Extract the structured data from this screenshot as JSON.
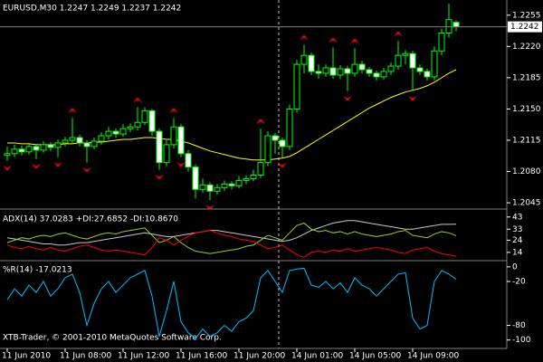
{
  "chart_data": {
    "type": "candlestick",
    "title": "EURUSD,M30  1.2247 1.2249 1.2237 1.2242",
    "categories": [
      "11 Jun 2010",
      null,
      null,
      null,
      null,
      null,
      null,
      null,
      "11 Jun 08:00",
      null,
      null,
      null,
      null,
      null,
      null,
      null,
      "11 Jun 12:00",
      null,
      null,
      null,
      null,
      null,
      null,
      null,
      "11 Jun 16:00",
      null,
      null,
      null,
      null,
      null,
      null,
      null,
      "11 Jun 20:00",
      null,
      null,
      null,
      null,
      null,
      null,
      null,
      "14 Jun 01:00",
      null,
      null,
      null,
      null,
      null,
      null,
      null,
      "14 Jun 05:00",
      null,
      null,
      null,
      null,
      null,
      null,
      null,
      "14 Jun 09:00",
      null,
      null,
      null,
      null,
      null,
      null
    ],
    "candles": [
      [
        1.2098,
        1.2108,
        1.2092,
        1.21
      ],
      [
        1.21,
        1.211,
        1.2096,
        1.2105
      ],
      [
        1.2105,
        1.2109,
        1.2098,
        1.2102
      ],
      [
        1.2102,
        1.2112,
        1.2099,
        1.2108
      ],
      [
        1.2108,
        1.2111,
        1.2094,
        1.2104
      ],
      [
        1.2104,
        1.2114,
        1.2101,
        1.211
      ],
      [
        1.211,
        1.2113,
        1.2103,
        1.2107
      ],
      [
        1.2107,
        1.2116,
        1.2096,
        1.2112
      ],
      [
        1.2112,
        1.2119,
        1.2108,
        1.2115
      ],
      [
        1.2115,
        1.214,
        1.2112,
        1.2118
      ],
      [
        1.2118,
        1.2121,
        1.2108,
        1.2112
      ],
      [
        1.2112,
        1.2115,
        1.209,
        1.2108
      ],
      [
        1.2108,
        1.2118,
        1.2105,
        1.2114
      ],
      [
        1.2114,
        1.2124,
        1.211,
        1.212
      ],
      [
        1.212,
        1.213,
        1.2116,
        1.2125
      ],
      [
        1.2125,
        1.2128,
        1.2118,
        1.2122
      ],
      [
        1.2122,
        1.2133,
        1.2119,
        1.2128
      ],
      [
        1.2128,
        1.2134,
        1.2124,
        1.213
      ],
      [
        1.213,
        1.2152,
        1.2126,
        1.2135
      ],
      [
        1.2135,
        1.2152,
        1.2132,
        1.2148
      ],
      [
        1.2148,
        1.215,
        1.212,
        1.2125
      ],
      [
        1.2125,
        1.2128,
        1.2082,
        1.209
      ],
      [
        1.209,
        1.2115,
        1.2086,
        1.211
      ],
      [
        1.211,
        1.214,
        1.2106,
        1.213
      ],
      [
        1.213,
        1.2133,
        1.2096,
        1.21
      ],
      [
        1.21,
        1.2104,
        1.208,
        1.2085
      ],
      [
        1.2085,
        1.2088,
        1.205,
        1.206
      ],
      [
        1.206,
        1.2072,
        1.2056,
        1.2065
      ],
      [
        1.2065,
        1.2068,
        1.2048,
        1.2058
      ],
      [
        1.2058,
        1.2066,
        1.2054,
        1.2062
      ],
      [
        1.2062,
        1.207,
        1.2058,
        1.2066
      ],
      [
        1.2066,
        1.2069,
        1.206,
        1.2064
      ],
      [
        1.2064,
        1.2075,
        1.2061,
        1.207
      ],
      [
        1.207,
        1.2076,
        1.2066,
        1.2072
      ],
      [
        1.2072,
        1.2082,
        1.2069,
        1.2076
      ],
      [
        1.2076,
        1.2128,
        1.2073,
        1.209
      ],
      [
        1.209,
        1.2125,
        1.2086,
        1.212
      ],
      [
        1.212,
        1.2123,
        1.21,
        1.2115
      ],
      [
        1.2115,
        1.2118,
        1.2095,
        1.2108
      ],
      [
        1.2108,
        1.2155,
        1.2104,
        1.215
      ],
      [
        1.215,
        1.2205,
        1.2146,
        1.22
      ],
      [
        1.22,
        1.2222,
        1.219,
        1.221
      ],
      [
        1.221,
        1.2213,
        1.2188,
        1.2192
      ],
      [
        1.2192,
        1.22,
        1.2184,
        1.219
      ],
      [
        1.219,
        1.22,
        1.2186,
        1.2196
      ],
      [
        1.2196,
        1.2219,
        1.2184,
        1.2188
      ],
      [
        1.2188,
        1.2199,
        1.2184,
        1.2195
      ],
      [
        1.2195,
        1.2198,
        1.217,
        1.219
      ],
      [
        1.219,
        1.2218,
        1.2186,
        1.22
      ],
      [
        1.22,
        1.2204,
        1.219,
        1.2194
      ],
      [
        1.2194,
        1.2197,
        1.2186,
        1.219
      ],
      [
        1.219,
        1.2193,
        1.2182,
        1.2186
      ],
      [
        1.2186,
        1.2196,
        1.2183,
        1.2192
      ],
      [
        1.2192,
        1.2202,
        1.2188,
        1.2198
      ],
      [
        1.2198,
        1.2226,
        1.2194,
        1.221
      ],
      [
        1.221,
        1.2216,
        1.22,
        1.2212
      ],
      [
        1.2212,
        1.2215,
        1.217,
        1.2196
      ],
      [
        1.2196,
        1.22,
        1.2188,
        1.2192
      ],
      [
        1.2192,
        1.2195,
        1.2182,
        1.2186
      ],
      [
        1.2186,
        1.222,
        1.2182,
        1.2215
      ],
      [
        1.2215,
        1.224,
        1.221,
        1.2235
      ],
      [
        1.2235,
        1.2268,
        1.223,
        1.225
      ],
      [
        1.2247,
        1.2249,
        1.2237,
        1.2242
      ]
    ],
    "up_color": "#00ff00",
    "bull_fill": "#000000",
    "bear_fill": "#ffffff",
    "ma": {
      "color": "#ffff00",
      "values": [
        1.2112,
        1.2112,
        1.2111,
        1.2111,
        1.211,
        1.211,
        1.211,
        1.211,
        1.2111,
        1.2111,
        1.2112,
        1.2112,
        1.2113,
        1.2113,
        1.2114,
        1.2115,
        1.2116,
        1.2116,
        1.2117,
        1.2118,
        1.2118,
        1.2117,
        1.2116,
        1.2116,
        1.2114,
        1.2112,
        1.2109,
        1.2106,
        1.2103,
        1.2101,
        1.2099,
        1.2097,
        1.2095,
        1.2094,
        1.2093,
        1.2093,
        1.2093,
        1.2094,
        1.2095,
        1.2097,
        1.2101,
        1.2106,
        1.2111,
        1.2116,
        1.2121,
        1.2126,
        1.2131,
        1.2136,
        1.2141,
        1.2146,
        1.2151,
        1.2155,
        1.2159,
        1.2163,
        1.2166,
        1.2169,
        1.2171,
        1.2173,
        1.2176,
        1.218,
        1.2185,
        1.219,
        1.2194
      ]
    },
    "up_fractals": [
      9,
      18,
      23,
      35,
      41,
      45,
      48,
      54,
      61
    ],
    "down_fractals": [
      0,
      4,
      7,
      11,
      21,
      24,
      28,
      38,
      47,
      56
    ],
    "fractal_color": "#ff0000",
    "ylim": [
      1.2039,
      1.2272
    ],
    "yticks": [
      1.2255,
      {
        "value": 1.222,
        "label": "1.2220"
      },
      1.2185,
      {
        "value": 1.215,
        "label": "1.2150"
      },
      1.2115,
      {
        "value": 1.208,
        "label": "1.2080"
      },
      1.2045
    ],
    "adx": {
      "label": "ADX(14) 37.0283 +DI:27.6852 -DI:10.8670",
      "ylim": [
        8,
        48
      ],
      "yticks": [
        43,
        33,
        24,
        14
      ],
      "series": [
        {
          "color": "#c8c8c8",
          "values": [
            26,
            25,
            24,
            23,
            22,
            21,
            21,
            20,
            20,
            21,
            22,
            22,
            23,
            24,
            25,
            26,
            27,
            28,
            29,
            30,
            29,
            28,
            27,
            27,
            28,
            29,
            30,
            31,
            32,
            32,
            31,
            30,
            29,
            28,
            27,
            26,
            25,
            24,
            23,
            24,
            26,
            29,
            32,
            34,
            36,
            38,
            39,
            40,
            40,
            39,
            38,
            37,
            36,
            35,
            34,
            33,
            33,
            34,
            35,
            36,
            37,
            37,
            37.0283
          ]
        },
        {
          "color": "#9acd32",
          "values": [
            22,
            24,
            26,
            25,
            27,
            28,
            27,
            29,
            30,
            28,
            26,
            25,
            27,
            29,
            30,
            29,
            31,
            32,
            33,
            34,
            28,
            22,
            24,
            27,
            22,
            18,
            15,
            14,
            13,
            14,
            15,
            16,
            17,
            19,
            20,
            24,
            28,
            26,
            24,
            30,
            36,
            38,
            33,
            31,
            32,
            30,
            31,
            29,
            31,
            29,
            28,
            27,
            28,
            29,
            31,
            32,
            28,
            27,
            26,
            29,
            31,
            30,
            27.6852
          ]
        },
        {
          "color": "#ff0000",
          "values": [
            20,
            18,
            17,
            19,
            17,
            16,
            18,
            16,
            15,
            17,
            19,
            20,
            18,
            16,
            15,
            16,
            15,
            14,
            13,
            12,
            18,
            26,
            24,
            20,
            24,
            27,
            30,
            31,
            32,
            30,
            28,
            27,
            25,
            24,
            23,
            20,
            17,
            18,
            20,
            16,
            12,
            10,
            14,
            15,
            14,
            16,
            15,
            17,
            15,
            16,
            17,
            18,
            17,
            16,
            14,
            13,
            16,
            17,
            18,
            15,
            13,
            12,
            10.867
          ]
        }
      ]
    },
    "wpr": {
      "label": "%R(14) -17.0213",
      "color": "#00bfff",
      "ylim": [
        -109,
        6
      ],
      "yticks": [
        0,
        -20,
        -80,
        -100
      ],
      "values": [
        -45,
        -30,
        -40,
        -25,
        -35,
        -20,
        -40,
        -30,
        -15,
        -10,
        -35,
        -80,
        -50,
        -30,
        -20,
        -35,
        -25,
        -15,
        -10,
        -5,
        -40,
        -95,
        -60,
        -20,
        -75,
        -90,
        -98,
        -85,
        -95,
        -90,
        -80,
        -88,
        -75,
        -70,
        -60,
        -15,
        -5,
        -20,
        -35,
        -5,
        -3,
        -2,
        -25,
        -28,
        -20,
        -30,
        -22,
        -35,
        -15,
        -25,
        -30,
        -40,
        -30,
        -20,
        -10,
        -8,
        -70,
        -85,
        -80,
        -20,
        -5,
        -10,
        -17.0213
      ]
    },
    "copyright": "XTB-Trader, © 2001-2010 MetaQuotes Software Corp."
  }
}
